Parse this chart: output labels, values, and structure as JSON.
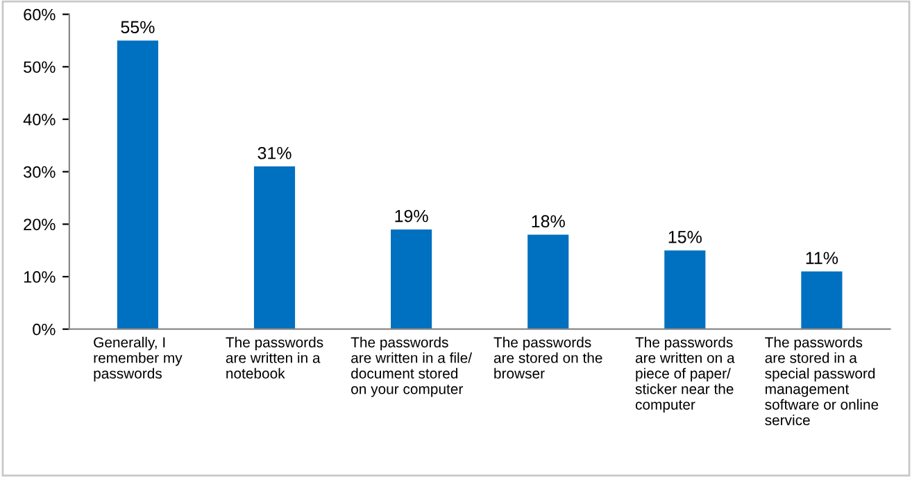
{
  "chart_data": {
    "type": "bar",
    "categories": [
      "Generally, I\nremember my\npasswords",
      "The passwords\nare written in a\nnotebook",
      "The passwords\nare written in a file/\ndocument stored\non your computer",
      "The passwords\nare stored on the\nbrowser",
      "The passwords\nare written on a\npiece of paper/\nsticker near the\ncomputer",
      "The passwords\nare stored in a\nspecial password\nmanagement\nsoftware or online\nservice"
    ],
    "values": [
      55,
      31,
      19,
      18,
      15,
      11
    ],
    "value_labels": [
      "55%",
      "31%",
      "19%",
      "18%",
      "15%",
      "11%"
    ],
    "color": "#0070c0",
    "ylim": [
      0,
      60
    ],
    "yticks": [
      {
        "value": 0,
        "label": "0%"
      },
      {
        "value": 10,
        "label": "10%"
      },
      {
        "value": 20,
        "label": "20%"
      },
      {
        "value": 30,
        "label": "30%"
      },
      {
        "value": 40,
        "label": "40%"
      },
      {
        "value": 50,
        "label": "50%"
      },
      {
        "value": 60,
        "label": "60%"
      }
    ],
    "grid": false,
    "legend": false
  }
}
